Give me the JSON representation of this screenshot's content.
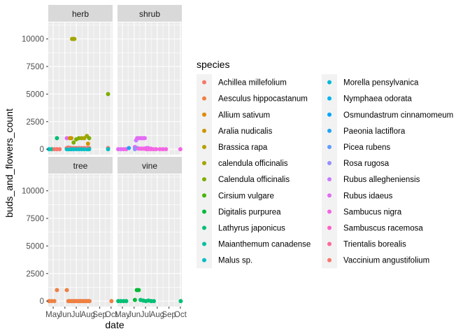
{
  "chart_data": {
    "type": "scatter",
    "faceted": true,
    "facets": [
      "herb",
      "shrub",
      "tree",
      "vine"
    ],
    "xlabel": "date",
    "ylabel": "buds_and_flowers_count",
    "x_ticks": [
      "May",
      "Jun",
      "Jul",
      "Aug",
      "Sep",
      "Oct"
    ],
    "y_ticks": [
      0,
      2500,
      5000,
      7500,
      10000
    ],
    "ylim": [
      -500,
      11500
    ],
    "legend": {
      "title": "species",
      "position": "right",
      "entries": [
        {
          "name": "Achillea millefolium",
          "color": "#F8766D"
        },
        {
          "name": "Aesculus hippocastanum",
          "color": "#EE8043"
        },
        {
          "name": "Allium sativum",
          "color": "#DF8900"
        },
        {
          "name": "Aralia nudicalis",
          "color": "#CC9600"
        },
        {
          "name": "Brassica rapa",
          "color": "#B79F00"
        },
        {
          "name": "calendula officinalis",
          "color": "#A3A500"
        },
        {
          "name": "Calendula officinalis",
          "color": "#7CAE00"
        },
        {
          "name": "Cirsium vulgare",
          "color": "#45B500"
        },
        {
          "name": "Digitalis purpurea",
          "color": "#00BA38"
        },
        {
          "name": "Lathyrus japonicus",
          "color": "#00BF74"
        },
        {
          "name": "Maianthemum canadense",
          "color": "#00C19F"
        },
        {
          "name": "Malus sp.",
          "color": "#00BFC4"
        },
        {
          "name": "Morella pensylvanica",
          "color": "#00BAD8"
        },
        {
          "name": "Nymphaea odorata",
          "color": "#00B4EF"
        },
        {
          "name": "Osmundastrum cinnamomeum",
          "color": "#00A5FF"
        },
        {
          "name": "Paeonia lactiflora",
          "color": "#22A5F2"
        },
        {
          "name": "Picea rubens",
          "color": "#619CFF"
        },
        {
          "name": "Rosa rugosa",
          "color": "#9590FF"
        },
        {
          "name": "Rubus allegheniensis",
          "color": "#C77CFF"
        },
        {
          "name": "Rubus idaeus",
          "color": "#E46BF6"
        },
        {
          "name": "Sambucus nigra",
          "color": "#F564E3"
        },
        {
          "name": "Sambuscus racemosa",
          "color": "#FF61C3"
        },
        {
          "name": "Trientalis borealis",
          "color": "#FF689F"
        },
        {
          "name": "Vaccinium angustifolium",
          "color": "#F8766D"
        }
      ]
    },
    "x_domain": [
      "2023-04-18",
      "2023-10-05"
    ],
    "points": [
      {
        "facet": "herb",
        "species": "Malus sp.",
        "date": "2023-04-20",
        "y": 0
      },
      {
        "facet": "herb",
        "species": "Maianthemum canadense",
        "date": "2023-04-27",
        "y": 0
      },
      {
        "facet": "herb",
        "species": "Achillea millefolium",
        "date": "2023-05-04",
        "y": 0
      },
      {
        "facet": "herb",
        "species": "Achillea millefolium",
        "date": "2023-05-11",
        "y": 0
      },
      {
        "facet": "herb",
        "species": "Lathyrus japonicus",
        "date": "2023-05-11",
        "y": 1000
      },
      {
        "facet": "herb",
        "species": "Achillea millefolium",
        "date": "2023-05-18",
        "y": 0
      },
      {
        "facet": "herb",
        "species": "Rubus idaeus",
        "date": "2023-06-06",
        "y": 1000
      },
      {
        "facet": "herb",
        "species": "Achillea millefolium",
        "date": "2023-06-06",
        "y": 100
      },
      {
        "facet": "herb",
        "species": "Malus sp.",
        "date": "2023-06-06",
        "y": 0
      },
      {
        "facet": "herb",
        "species": "Achillea millefolium",
        "date": "2023-06-10",
        "y": 150
      },
      {
        "facet": "herb",
        "species": "Malus sp.",
        "date": "2023-06-10",
        "y": 0
      },
      {
        "facet": "herb",
        "species": "Aralia nudicalis",
        "date": "2023-06-14",
        "y": 1000
      },
      {
        "facet": "herb",
        "species": "Achillea millefolium",
        "date": "2023-06-14",
        "y": 120
      },
      {
        "facet": "herb",
        "species": "Malus sp.",
        "date": "2023-06-14",
        "y": 0
      },
      {
        "facet": "herb",
        "species": "Aralia nudicalis",
        "date": "2023-06-18",
        "y": 1000
      },
      {
        "facet": "herb",
        "species": "Achillea millefolium",
        "date": "2023-06-18",
        "y": 100
      },
      {
        "facet": "herb",
        "species": "Malus sp.",
        "date": "2023-06-18",
        "y": 0
      },
      {
        "facet": "herb",
        "species": "calendula officinalis",
        "date": "2023-06-20",
        "y": 10000
      },
      {
        "facet": "herb",
        "species": "calendula officinalis",
        "date": "2023-06-23",
        "y": 10000
      },
      {
        "facet": "herb",
        "species": "calendula officinalis",
        "date": "2023-06-26",
        "y": 10000
      },
      {
        "facet": "herb",
        "species": "Calendula officinalis",
        "date": "2023-06-24",
        "y": 600
      },
      {
        "facet": "herb",
        "species": "Achillea millefolium",
        "date": "2023-06-24",
        "y": 100
      },
      {
        "facet": "herb",
        "species": "Malus sp.",
        "date": "2023-06-24",
        "y": 0
      },
      {
        "facet": "herb",
        "species": "Calendula officinalis",
        "date": "2023-07-01",
        "y": 900
      },
      {
        "facet": "herb",
        "species": "Achillea millefolium",
        "date": "2023-07-01",
        "y": 100
      },
      {
        "facet": "herb",
        "species": "Malus sp.",
        "date": "2023-07-01",
        "y": 0
      },
      {
        "facet": "herb",
        "species": "Calendula officinalis",
        "date": "2023-07-08",
        "y": 1000
      },
      {
        "facet": "herb",
        "species": "Achillea millefolium",
        "date": "2023-07-08",
        "y": 100
      },
      {
        "facet": "herb",
        "species": "Malus sp.",
        "date": "2023-07-08",
        "y": 0
      },
      {
        "facet": "herb",
        "species": "calendula officinalis",
        "date": "2023-07-15",
        "y": 1000
      },
      {
        "facet": "herb",
        "species": "Achillea millefolium",
        "date": "2023-07-15",
        "y": 100
      },
      {
        "facet": "herb",
        "species": "Malus sp.",
        "date": "2023-07-15",
        "y": 0
      },
      {
        "facet": "herb",
        "species": "calendula officinalis",
        "date": "2023-07-22",
        "y": 1000
      },
      {
        "facet": "herb",
        "species": "Achillea millefolium",
        "date": "2023-07-22",
        "y": 100
      },
      {
        "facet": "herb",
        "species": "Malus sp.",
        "date": "2023-07-22",
        "y": 0
      },
      {
        "facet": "herb",
        "species": "calendula officinalis",
        "date": "2023-07-29",
        "y": 1200
      },
      {
        "facet": "herb",
        "species": "Achillea millefolium",
        "date": "2023-07-29",
        "y": 100
      },
      {
        "facet": "herb",
        "species": "Malus sp.",
        "date": "2023-07-29",
        "y": 0
      },
      {
        "facet": "herb",
        "species": "Aralia nudicalis",
        "date": "2023-08-01",
        "y": 500
      },
      {
        "facet": "herb",
        "species": "Achillea millefolium",
        "date": "2023-08-01",
        "y": 100
      },
      {
        "facet": "herb",
        "species": "Malus sp.",
        "date": "2023-08-01",
        "y": 0
      },
      {
        "facet": "herb",
        "species": "Calendula officinalis",
        "date": "2023-08-04",
        "y": 1000
      },
      {
        "facet": "herb",
        "species": "Achillea millefolium",
        "date": "2023-08-04",
        "y": 100
      },
      {
        "facet": "herb",
        "species": "Malus sp.",
        "date": "2023-08-04",
        "y": 0
      },
      {
        "facet": "herb",
        "species": "Calendula officinalis",
        "date": "2023-09-23",
        "y": 5000
      },
      {
        "facet": "herb",
        "species": "Achillea millefolium",
        "date": "2023-09-23",
        "y": 100
      },
      {
        "facet": "herb",
        "species": "Malus sp.",
        "date": "2023-09-23",
        "y": 0
      },
      {
        "facet": "shrub",
        "species": "Rubus idaeus",
        "date": "2023-04-20",
        "y": 0
      },
      {
        "facet": "shrub",
        "species": "Rubus idaeus",
        "date": "2023-04-27",
        "y": 0
      },
      {
        "facet": "shrub",
        "species": "Rubus idaeus",
        "date": "2023-05-04",
        "y": 0
      },
      {
        "facet": "shrub",
        "species": "Sambucus nigra",
        "date": "2023-05-11",
        "y": 0
      },
      {
        "facet": "shrub",
        "species": "Paeonia lactiflora",
        "date": "2023-05-18",
        "y": 100
      },
      {
        "facet": "shrub",
        "species": "Rubus idaeus",
        "date": "2023-06-03",
        "y": 200
      },
      {
        "facet": "shrub",
        "species": "Rosa rugosa",
        "date": "2023-06-03",
        "y": 0
      },
      {
        "facet": "shrub",
        "species": "Rubus allegheniensis",
        "date": "2023-06-06",
        "y": 800
      },
      {
        "facet": "shrub",
        "species": "Rosa rugosa",
        "date": "2023-06-06",
        "y": 100
      },
      {
        "facet": "shrub",
        "species": "Rubus idaeus",
        "date": "2023-06-09",
        "y": 1000
      },
      {
        "facet": "shrub",
        "species": "Rosa rugosa",
        "date": "2023-06-09",
        "y": 100
      },
      {
        "facet": "shrub",
        "species": "Rubus idaeus",
        "date": "2023-06-13",
        "y": 1000
      },
      {
        "facet": "shrub",
        "species": "Sambucus nigra",
        "date": "2023-06-13",
        "y": 50
      },
      {
        "facet": "shrub",
        "species": "Rubus idaeus",
        "date": "2023-06-17",
        "y": 1000
      },
      {
        "facet": "shrub",
        "species": "Sambucus nigra",
        "date": "2023-06-17",
        "y": 50
      },
      {
        "facet": "shrub",
        "species": "Rubus idaeus",
        "date": "2023-06-21",
        "y": 1000
      },
      {
        "facet": "shrub",
        "species": "Sambucus nigra",
        "date": "2023-06-21",
        "y": 50
      },
      {
        "facet": "shrub",
        "species": "Rubus idaeus",
        "date": "2023-06-25",
        "y": 1000
      },
      {
        "facet": "shrub",
        "species": "Sambucus nigra",
        "date": "2023-06-25",
        "y": 50
      },
      {
        "facet": "shrub",
        "species": "Rubus idaeus",
        "date": "2023-06-29",
        "y": 1000
      },
      {
        "facet": "shrub",
        "species": "Sambucus nigra",
        "date": "2023-06-29",
        "y": 50
      },
      {
        "facet": "shrub",
        "species": "Rubus idaeus",
        "date": "2023-07-03",
        "y": 100
      },
      {
        "facet": "shrub",
        "species": "Sambucus nigra",
        "date": "2023-07-03",
        "y": 0
      },
      {
        "facet": "shrub",
        "species": "Rubus idaeus",
        "date": "2023-07-08",
        "y": 100
      },
      {
        "facet": "shrub",
        "species": "Sambucus nigra",
        "date": "2023-07-08",
        "y": 0
      },
      {
        "facet": "shrub",
        "species": "Rubus idaeus",
        "date": "2023-07-15",
        "y": 50
      },
      {
        "facet": "shrub",
        "species": "Sambucus nigra",
        "date": "2023-07-15",
        "y": 0
      },
      {
        "facet": "shrub",
        "species": "Sambucus nigra",
        "date": "2023-07-22",
        "y": 0
      },
      {
        "facet": "shrub",
        "species": "Sambucus nigra",
        "date": "2023-07-29",
        "y": 0
      },
      {
        "facet": "shrub",
        "species": "Sambucus nigra",
        "date": "2023-08-08",
        "y": 0
      },
      {
        "facet": "shrub",
        "species": "Sambucus nigra",
        "date": "2023-08-16",
        "y": 0
      },
      {
        "facet": "shrub",
        "species": "Sambucus nigra",
        "date": "2023-08-24",
        "y": 0
      },
      {
        "facet": "shrub",
        "species": "Sambucus nigra",
        "date": "2023-10-01",
        "y": 0
      },
      {
        "facet": "tree",
        "species": "Aesculus hippocastanum",
        "date": "2023-04-20",
        "y": 0
      },
      {
        "facet": "tree",
        "species": "Aesculus hippocastanum",
        "date": "2023-04-27",
        "y": 0
      },
      {
        "facet": "tree",
        "species": "Aesculus hippocastanum",
        "date": "2023-05-04",
        "y": 0
      },
      {
        "facet": "tree",
        "species": "Aesculus hippocastanum",
        "date": "2023-05-11",
        "y": 1000
      },
      {
        "facet": "tree",
        "species": "Aesculus hippocastanum",
        "date": "2023-06-06",
        "y": 1000
      },
      {
        "facet": "tree",
        "species": "Aesculus hippocastanum",
        "date": "2023-06-10",
        "y": 0
      },
      {
        "facet": "tree",
        "species": "Aesculus hippocastanum",
        "date": "2023-06-14",
        "y": 0
      },
      {
        "facet": "tree",
        "species": "Aesculus hippocastanum",
        "date": "2023-06-18",
        "y": 0
      },
      {
        "facet": "tree",
        "species": "Aesculus hippocastanum",
        "date": "2023-06-22",
        "y": 0
      },
      {
        "facet": "tree",
        "species": "Aesculus hippocastanum",
        "date": "2023-06-26",
        "y": 0
      },
      {
        "facet": "tree",
        "species": "Aesculus hippocastanum",
        "date": "2023-06-30",
        "y": 0
      },
      {
        "facet": "tree",
        "species": "Aesculus hippocastanum",
        "date": "2023-07-04",
        "y": 0
      },
      {
        "facet": "tree",
        "species": "Aesculus hippocastanum",
        "date": "2023-07-08",
        "y": 0
      },
      {
        "facet": "tree",
        "species": "Aesculus hippocastanum",
        "date": "2023-07-12",
        "y": 0
      },
      {
        "facet": "tree",
        "species": "Aesculus hippocastanum",
        "date": "2023-07-16",
        "y": 0
      },
      {
        "facet": "tree",
        "species": "Aesculus hippocastanum",
        "date": "2023-07-20",
        "y": 0
      },
      {
        "facet": "tree",
        "species": "Aesculus hippocastanum",
        "date": "2023-07-24",
        "y": 0
      },
      {
        "facet": "tree",
        "species": "Aesculus hippocastanum",
        "date": "2023-07-28",
        "y": 0
      },
      {
        "facet": "tree",
        "species": "Aesculus hippocastanum",
        "date": "2023-08-01",
        "y": 0
      },
      {
        "facet": "tree",
        "species": "Aesculus hippocastanum",
        "date": "2023-08-05",
        "y": 0
      },
      {
        "facet": "tree",
        "species": "Aesculus hippocastanum",
        "date": "2023-10-02",
        "y": 0
      },
      {
        "facet": "vine",
        "species": "Lathyrus japonicus",
        "date": "2023-04-20",
        "y": 0
      },
      {
        "facet": "vine",
        "species": "Lathyrus japonicus",
        "date": "2023-04-27",
        "y": 0
      },
      {
        "facet": "vine",
        "species": "Lathyrus japonicus",
        "date": "2023-05-04",
        "y": 0
      },
      {
        "facet": "vine",
        "species": "Lathyrus japonicus",
        "date": "2023-05-11",
        "y": 0
      },
      {
        "facet": "vine",
        "species": "Digitalis purpurea",
        "date": "2023-06-03",
        "y": 100
      },
      {
        "facet": "vine",
        "species": "Digitalis purpurea",
        "date": "2023-06-08",
        "y": 1000
      },
      {
        "facet": "vine",
        "species": "Digitalis purpurea",
        "date": "2023-06-13",
        "y": 1000
      },
      {
        "facet": "vine",
        "species": "Lathyrus japonicus",
        "date": "2023-06-18",
        "y": 100
      },
      {
        "facet": "vine",
        "species": "Lathyrus japonicus",
        "date": "2023-06-25",
        "y": 50
      },
      {
        "facet": "vine",
        "species": "Lathyrus japonicus",
        "date": "2023-07-02",
        "y": 0
      },
      {
        "facet": "vine",
        "species": "Lathyrus japonicus",
        "date": "2023-07-09",
        "y": 50
      },
      {
        "facet": "vine",
        "species": "Lathyrus japonicus",
        "date": "2023-07-16",
        "y": 0
      },
      {
        "facet": "vine",
        "species": "Lathyrus japonicus",
        "date": "2023-07-23",
        "y": 0
      },
      {
        "facet": "vine",
        "species": "Lathyrus japonicus",
        "date": "2023-10-02",
        "y": 0
      }
    ]
  }
}
